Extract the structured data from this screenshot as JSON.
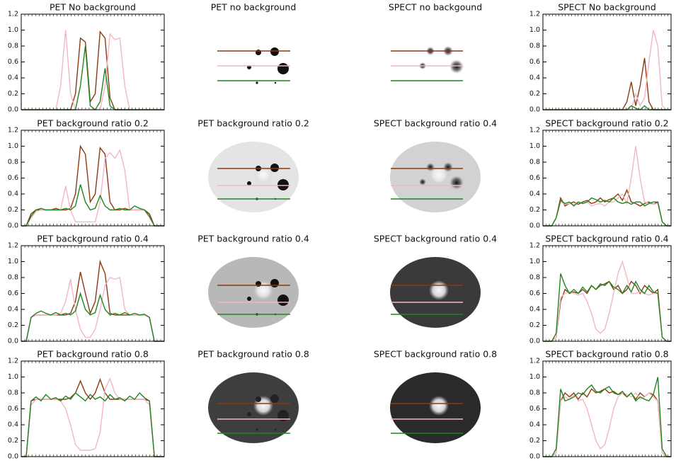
{
  "chart_data": [
    {
      "type": "line",
      "title": "PET No background",
      "ylim": [
        0,
        1.2
      ],
      "yticks": [
        {
          "value": 0,
          "label": "0.0"
        },
        0.2,
        0.4,
        0.6,
        0.8,
        {
          "value": 1,
          "label": "1.0"
        },
        1.2
      ],
      "series": [
        {
          "color": "#8b3a0f",
          "values": [
            0,
            0,
            0,
            0,
            0,
            0,
            0,
            0,
            0,
            0,
            0,
            0.2,
            0.9,
            0.85,
            0.1,
            0.2,
            0.98,
            0.9,
            0.15,
            0,
            0,
            0,
            0,
            0,
            0,
            0,
            0,
            0,
            0,
            0
          ]
        },
        {
          "color": "#f4b6c2",
          "values": [
            0,
            0,
            0,
            0,
            0,
            0,
            0,
            0,
            0.3,
            1.0,
            0.2,
            0,
            0,
            0,
            0,
            0,
            0,
            0.3,
            0.95,
            0.88,
            0.9,
            0.3,
            0,
            0,
            0,
            0,
            0,
            0,
            0,
            0
          ]
        },
        {
          "color": "#1f861f",
          "values": [
            0,
            0,
            0,
            0,
            0,
            0,
            0,
            0,
            0,
            0,
            0,
            0,
            0.3,
            0.8,
            0.05,
            0,
            0.1,
            0.52,
            0.05,
            0,
            0,
            0,
            0,
            0,
            0,
            0,
            0,
            0,
            0,
            0
          ]
        }
      ]
    },
    {
      "type": "image",
      "title": "PET no background"
    },
    {
      "type": "image",
      "title": "SPECT no backgound"
    },
    {
      "type": "line",
      "title": "SPECT No background",
      "ylim": [
        0,
        1.2
      ],
      "yticks": [
        {
          "value": 0,
          "label": "0.0"
        },
        0.2,
        0.4,
        0.6,
        0.8,
        {
          "value": 1,
          "label": "1.0"
        },
        1.2
      ],
      "series": [
        {
          "color": "#8b3a0f",
          "values": [
            0,
            0,
            0,
            0,
            0,
            0,
            0,
            0,
            0,
            0,
            0,
            0,
            0,
            0,
            0,
            0,
            0,
            0,
            0,
            0.1,
            0.35,
            0.05,
            0.3,
            0.65,
            0.1,
            0,
            0,
            0,
            0,
            0
          ]
        },
        {
          "color": "#f4b6c2",
          "values": [
            0,
            0,
            0,
            0,
            0,
            0,
            0,
            0,
            0,
            0,
            0,
            0,
            0,
            0,
            0,
            0,
            0,
            0,
            0,
            0,
            0,
            0.2,
            0.05,
            0.15,
            0.6,
            1.0,
            0.8,
            0.05,
            0,
            0
          ]
        },
        {
          "color": "#1f861f",
          "values": [
            0,
            0,
            0,
            0,
            0,
            0,
            0,
            0,
            0,
            0,
            0,
            0,
            0,
            0,
            0,
            0,
            0,
            0,
            0,
            0,
            0.05,
            0.02,
            0,
            0.05,
            0,
            0,
            0,
            0,
            0,
            0
          ]
        }
      ]
    },
    {
      "type": "line",
      "title": "PET background ratio 0.2",
      "ylim": [
        0,
        1.2
      ],
      "yticks": [
        {
          "value": 0,
          "label": "0.0"
        },
        0.2,
        0.4,
        0.6,
        0.8,
        {
          "value": 1,
          "label": "1.0"
        },
        1.2
      ],
      "series": [
        {
          "color": "#8b3a0f",
          "values": [
            0,
            0,
            0.15,
            0.2,
            0.2,
            0.2,
            0.2,
            0.22,
            0.2,
            0.2,
            0.22,
            0.4,
            1.0,
            0.9,
            0.3,
            0.4,
            0.98,
            0.9,
            0.3,
            0.2,
            0.2,
            0.22,
            0.2,
            0.2,
            0.2,
            0.2,
            0.15,
            0,
            0,
            0
          ]
        },
        {
          "color": "#f4b6c2",
          "values": [
            0,
            0,
            0.1,
            0.18,
            0.2,
            0.2,
            0.2,
            0.2,
            0.2,
            0.5,
            0.2,
            0.05,
            0.05,
            0.05,
            0.05,
            0.05,
            0.3,
            0.85,
            0.92,
            0.85,
            0.95,
            0.7,
            0.2,
            0.2,
            0.2,
            0.2,
            0.1,
            0,
            0,
            0
          ]
        },
        {
          "color": "#1f861f",
          "values": [
            0,
            0,
            0.12,
            0.2,
            0.22,
            0.2,
            0.2,
            0.2,
            0.2,
            0.22,
            0.2,
            0.25,
            0.52,
            0.3,
            0.2,
            0.22,
            0.38,
            0.25,
            0.2,
            0.2,
            0.22,
            0.2,
            0.2,
            0.25,
            0.22,
            0.2,
            0.12,
            0,
            0,
            0
          ]
        }
      ]
    },
    {
      "type": "image",
      "title": "PET background ratio 0.2"
    },
    {
      "type": "image",
      "title": "SPECT background ratio 0.4"
    },
    {
      "type": "line",
      "title": "SPECT background ratio 0.2",
      "ylim": [
        0,
        1.2
      ],
      "yticks": [
        {
          "value": 0,
          "label": "0.0"
        },
        0.2,
        0.4,
        0.6,
        0.8,
        {
          "value": 1,
          "label": "1.0"
        },
        1.2
      ],
      "series": [
        {
          "color": "#8b3a0f",
          "values": [
            0,
            0,
            0,
            0.1,
            0.35,
            0.25,
            0.28,
            0.3,
            0.27,
            0.3,
            0.32,
            0.28,
            0.3,
            0.35,
            0.3,
            0.33,
            0.35,
            0.4,
            0.32,
            0.45,
            0.3,
            0.28,
            0.25,
            0.28,
            0.3,
            0.27,
            0.3,
            0.05,
            0,
            0
          ]
        },
        {
          "color": "#f4b6c2",
          "values": [
            0,
            0,
            0,
            0.1,
            0.3,
            0.27,
            0.28,
            0.27,
            0.3,
            0.28,
            0.3,
            0.25,
            0.27,
            0.28,
            0.25,
            0.3,
            0.3,
            0.35,
            0.4,
            0.28,
            0.6,
            1.0,
            0.6,
            0.3,
            0.28,
            0.27,
            0.28,
            0.05,
            0,
            0
          ]
        },
        {
          "color": "#1f861f",
          "values": [
            0,
            0,
            0,
            0.1,
            0.32,
            0.28,
            0.3,
            0.25,
            0.3,
            0.28,
            0.3,
            0.35,
            0.33,
            0.3,
            0.32,
            0.3,
            0.35,
            0.3,
            0.28,
            0.3,
            0.27,
            0.3,
            0.3,
            0.25,
            0.28,
            0.3,
            0.3,
            0.05,
            0,
            0
          ]
        }
      ]
    },
    {
      "type": "line",
      "title": "PET background ratio 0.4",
      "ylim": [
        0,
        1.2
      ],
      "yticks": [
        {
          "value": 0,
          "label": "0.0"
        },
        0.2,
        0.4,
        0.6,
        0.8,
        {
          "value": 1,
          "label": "1.0"
        },
        1.2
      ],
      "series": [
        {
          "color": "#8b3a0f",
          "values": [
            0,
            0,
            0.3,
            0.33,
            0.33,
            0.33,
            0.33,
            0.33,
            0.33,
            0.33,
            0.35,
            0.5,
            0.87,
            0.6,
            0.35,
            0.5,
            1.0,
            0.85,
            0.35,
            0.33,
            0.33,
            0.33,
            0.33,
            0.33,
            0.33,
            0.33,
            0.3,
            0,
            0,
            0
          ]
        },
        {
          "color": "#f4b6c2",
          "values": [
            0,
            0,
            0.3,
            0.33,
            0.33,
            0.33,
            0.33,
            0.33,
            0.35,
            0.5,
            0.78,
            0.4,
            0.15,
            0.05,
            0.05,
            0.15,
            0.4,
            0.7,
            0.8,
            0.78,
            0.8,
            0.4,
            0.33,
            0.33,
            0.33,
            0.33,
            0.3,
            0,
            0,
            0
          ]
        },
        {
          "color": "#1f861f",
          "values": [
            0,
            0,
            0.3,
            0.35,
            0.38,
            0.35,
            0.33,
            0.36,
            0.33,
            0.35,
            0.33,
            0.38,
            0.6,
            0.4,
            0.33,
            0.36,
            0.58,
            0.4,
            0.33,
            0.35,
            0.33,
            0.36,
            0.33,
            0.35,
            0.33,
            0.34,
            0.3,
            0,
            0,
            0
          ]
        }
      ]
    },
    {
      "type": "image",
      "title": "PET background ratio 0.4"
    },
    {
      "type": "image",
      "title": "SPECT background ratio 0.4"
    },
    {
      "type": "line",
      "title": "SPECT background ratio 0.4",
      "ylim": [
        0,
        1.2
      ],
      "yticks": [
        {
          "value": 0,
          "label": "0.0"
        },
        0.2,
        0.4,
        0.6,
        0.8,
        {
          "value": 1,
          "label": "1.0"
        },
        1.2
      ],
      "series": [
        {
          "color": "#8b3a0f",
          "values": [
            0,
            0,
            0,
            0.05,
            0.5,
            0.65,
            0.6,
            0.62,
            0.6,
            0.65,
            0.6,
            0.7,
            0.65,
            0.7,
            0.72,
            0.75,
            0.65,
            0.7,
            0.6,
            0.65,
            0.75,
            0.7,
            0.6,
            0.7,
            0.65,
            0.6,
            0.65,
            0.05,
            0,
            0
          ]
        },
        {
          "color": "#f4b6c2",
          "values": [
            0,
            0,
            0,
            0.05,
            0.55,
            0.6,
            0.62,
            0.6,
            0.58,
            0.6,
            0.5,
            0.35,
            0.15,
            0.1,
            0.15,
            0.35,
            0.6,
            0.85,
            1.0,
            0.8,
            0.6,
            0.6,
            0.62,
            0.6,
            0.58,
            0.6,
            0.6,
            0.05,
            0,
            0
          ]
        },
        {
          "color": "#1f861f",
          "values": [
            0,
            0,
            0,
            0.1,
            0.85,
            0.7,
            0.6,
            0.65,
            0.6,
            0.68,
            0.62,
            0.7,
            0.65,
            0.72,
            0.7,
            0.75,
            0.68,
            0.65,
            0.6,
            0.7,
            0.62,
            0.75,
            0.65,
            0.6,
            0.7,
            0.62,
            0.6,
            0.05,
            0,
            0
          ]
        }
      ]
    },
    {
      "type": "line",
      "title": "PET background ratio 0.8",
      "ylim": [
        0,
        1.2
      ],
      "yticks": [
        {
          "value": 0,
          "label": "0.0"
        },
        0.2,
        0.4,
        0.6,
        0.8,
        {
          "value": 1,
          "label": "1.0"
        },
        1.2
      ],
      "series": [
        {
          "color": "#8b3a0f",
          "values": [
            0,
            0,
            0.7,
            0.72,
            0.72,
            0.72,
            0.72,
            0.72,
            0.72,
            0.72,
            0.74,
            0.8,
            0.95,
            0.8,
            0.72,
            0.8,
            0.97,
            0.8,
            0.72,
            0.72,
            0.72,
            0.72,
            0.72,
            0.72,
            0.72,
            0.72,
            0.7,
            0,
            0,
            0
          ]
        },
        {
          "color": "#f4b6c2",
          "values": [
            0,
            0,
            0.65,
            0.72,
            0.72,
            0.72,
            0.72,
            0.72,
            0.7,
            0.6,
            0.4,
            0.15,
            0.08,
            0.08,
            0.08,
            0.1,
            0.3,
            0.85,
            0.98,
            0.8,
            0.72,
            0.72,
            0.72,
            0.72,
            0.72,
            0.72,
            0.65,
            0,
            0,
            0
          ]
        },
        {
          "color": "#1f861f",
          "values": [
            0,
            0,
            0.7,
            0.75,
            0.7,
            0.78,
            0.72,
            0.74,
            0.7,
            0.76,
            0.72,
            0.8,
            0.75,
            0.7,
            0.78,
            0.72,
            0.75,
            0.7,
            0.78,
            0.72,
            0.74,
            0.7,
            0.76,
            0.72,
            0.8,
            0.74,
            0.7,
            0,
            0,
            0
          ]
        }
      ]
    },
    {
      "type": "image",
      "title": "PET background ratio 0.8"
    },
    {
      "type": "image",
      "title": "SPECT background ratio 0.8"
    },
    {
      "type": "line",
      "title": "SPECT background ratio 0.8",
      "ylim": [
        0,
        1.2
      ],
      "yticks": [
        {
          "value": 0,
          "label": "0.0"
        },
        0.2,
        0.4,
        0.6,
        0.8,
        {
          "value": 1,
          "label": "1.0"
        },
        1.2
      ],
      "series": [
        {
          "color": "#8b3a0f",
          "values": [
            0,
            0,
            0,
            0.05,
            0.7,
            0.8,
            0.75,
            0.8,
            0.72,
            0.8,
            0.75,
            0.85,
            0.8,
            0.82,
            0.85,
            0.8,
            0.82,
            0.78,
            0.8,
            0.75,
            0.8,
            0.72,
            0.8,
            0.75,
            0.8,
            0.78,
            0.7,
            0.05,
            0,
            0
          ]
        },
        {
          "color": "#f4b6c2",
          "values": [
            0,
            0,
            0,
            0.05,
            0.7,
            0.75,
            0.72,
            0.78,
            0.7,
            0.72,
            0.6,
            0.4,
            0.2,
            0.1,
            0.15,
            0.35,
            0.6,
            0.75,
            0.8,
            0.78,
            0.75,
            0.8,
            0.72,
            0.75,
            0.8,
            0.75,
            0.7,
            0.05,
            0,
            0
          ]
        },
        {
          "color": "#1f861f",
          "values": [
            0,
            0,
            0,
            0.1,
            0.85,
            0.7,
            0.72,
            0.75,
            0.8,
            0.78,
            0.85,
            0.9,
            0.82,
            0.8,
            0.85,
            0.88,
            0.8,
            0.78,
            0.82,
            0.75,
            0.8,
            0.7,
            0.75,
            0.72,
            0.7,
            0.78,
            1.0,
            0.1,
            0,
            0
          ]
        }
      ]
    }
  ]
}
